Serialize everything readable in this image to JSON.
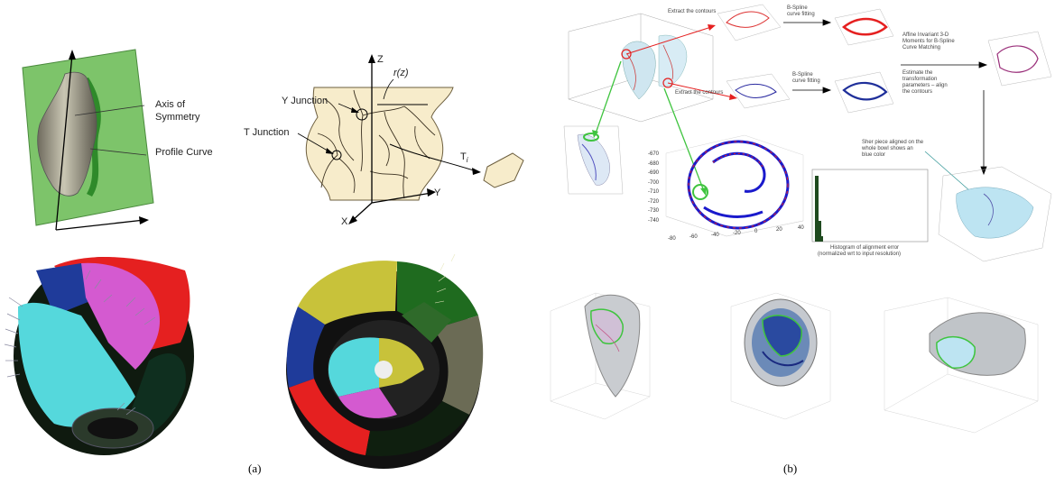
{
  "panel_a": {
    "caption": "(a)",
    "axis_label": "Axis of",
    "axis_label2": "Symmetry",
    "profile_label": "Profile Curve",
    "y_junction": "Y Junction",
    "t_junction": "T Junction",
    "axis_z": "Z",
    "axis_y": "Y",
    "axis_x": "X",
    "rz": "r(z)",
    "ti": "T",
    "ti_sub": "i"
  },
  "panel_b": {
    "caption": "(b)",
    "extract_top": "Extract the contours",
    "bspline_top1": "B-Spline",
    "bspline_top2": "curve fitting",
    "extract_mid": "Extract the contours",
    "bspline_mid1": "B-Spline",
    "bspline_mid2": "curve fitting",
    "affine1": "Affine Invariant 3-D",
    "affine2": "Moments for B-Spline",
    "affine3": "Curve Matching",
    "estimate1": "Estimate the",
    "estimate2": "transformation",
    "estimate3": "parameters – align",
    "estimate4": "the contours",
    "sherd_note1": "Sher piece aligned on the",
    "sherd_note2": "whole bowl shows an",
    "sherd_note3": "blue color",
    "hist1": "Histogram of alignment error",
    "hist2": "(normalized wrt to input resolution)",
    "scatter_y_ticks": [
      "-670",
      "-680",
      "-690",
      "-700",
      "-710",
      "-720",
      "-730",
      "-740"
    ],
    "scatter_x_ticks": [
      "-80",
      "-60",
      "-40",
      "-20",
      "0",
      "20",
      "40"
    ]
  },
  "colors": {
    "green_plane": "#7dc46a",
    "vase": "#a7a38f",
    "pot": "#f7eccb",
    "red": "#e52020",
    "magenta": "#d45ad0",
    "cyan": "#55d8dc",
    "blue": "#1f3b9a",
    "yellow": "#c8c23a",
    "dark_green": "#1f4a1f"
  }
}
